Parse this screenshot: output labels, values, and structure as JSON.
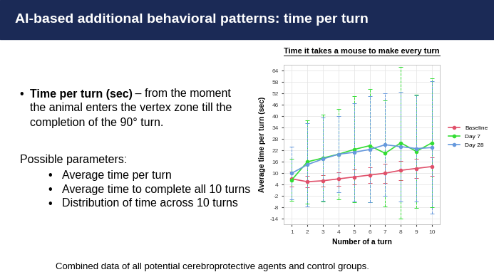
{
  "slide": {
    "header": "AI-based additional behavioral patterns: time per turn",
    "bullet": "•",
    "definition": {
      "term": "Time per turn (sec)",
      "lines": [
        "– from the moment",
        "the animal enters the vertex zone till the",
        "completion of the 90° turn."
      ]
    },
    "parameters_heading": "Possible parameters:",
    "parameters": [
      "Average time per turn",
      "Average time to complete all 10 turns",
      "Distribution of time across 10 turns"
    ],
    "footer": "Combined data of all potential cerebroprotective agents and control groups."
  },
  "chart_data": {
    "type": "line",
    "title": "Time it takes a mouse to make every turn",
    "x_label": "Number of a turn",
    "y_label": "Average time per turn (sec)",
    "x": [
      1,
      2,
      3,
      4,
      5,
      6,
      7,
      8,
      9,
      10
    ],
    "xlim": [
      0.5,
      10.5
    ],
    "xticks": [
      1,
      2,
      3,
      4,
      5,
      6,
      7,
      8,
      9,
      10
    ],
    "ylim": [
      -17,
      67
    ],
    "yticks": [
      -14,
      -8,
      -2,
      4,
      10,
      16,
      22,
      28,
      34,
      40,
      46,
      52,
      58,
      64
    ],
    "grid": true,
    "legend": "right",
    "series": [
      {
        "name": "Baseline",
        "color": "#e0506a",
        "marker": "o",
        "line_style": "solid",
        "values": [
          7,
          5.5,
          6,
          7,
          8,
          9,
          10,
          11.5,
          12.5,
          13.5
        ],
        "errors": [
          4,
          3,
          3,
          3.5,
          4,
          4,
          5,
          5,
          5,
          5
        ]
      },
      {
        "name": "Day 7",
        "color": "#33dd33",
        "marker": "o",
        "line_style": "solid",
        "values": [
          6.5,
          16,
          18,
          20,
          22.5,
          24.5,
          20.5,
          26,
          21.5,
          26
        ],
        "errors": [
          11,
          22,
          23,
          24,
          28,
          30,
          28,
          40,
          30,
          34
        ]
      },
      {
        "name": "Day 28",
        "color": "#6699dd",
        "marker": "o",
        "line_style": "solid",
        "values": [
          10,
          14.5,
          17.5,
          20,
          21,
          22.5,
          25,
          24,
          23,
          23.5
        ],
        "errors": [
          14,
          22,
          22,
          20,
          26,
          28,
          27,
          29,
          28,
          35
        ]
      }
    ]
  }
}
